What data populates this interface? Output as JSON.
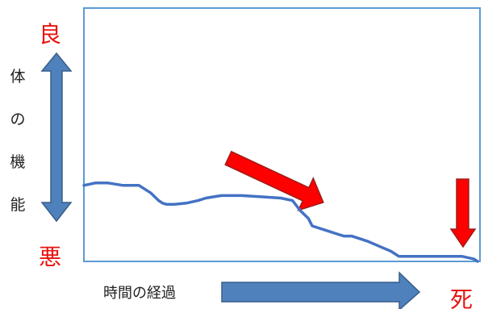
{
  "labels": {
    "good": "良",
    "bad": "悪",
    "death": "死",
    "yaxis_chars": [
      "体",
      "の",
      "機",
      "能"
    ],
    "xlabel": "時間の経過"
  },
  "colors": {
    "axis": "#5b9bd5",
    "curve": "#4472c4",
    "arrow_blue_fill": "#4f81bd",
    "arrow_blue_stroke": "#385d8a",
    "arrow_red_fill": "#ff0000",
    "arrow_red_stroke": "#9c1f1a",
    "label_red": "#e8140f"
  },
  "chart_data": {
    "type": "line",
    "xlabel": "時間の経過",
    "ylabel": "体の機能",
    "y_high_label": "良",
    "y_low_label": "悪",
    "end_label": "死",
    "xlim": [
      0,
      100
    ],
    "ylim": [
      0,
      100
    ],
    "grid": false,
    "series": [
      {
        "x": [
          0,
          3,
          6,
          10,
          14,
          17,
          19,
          20,
          21,
          23,
          26,
          29,
          31,
          33,
          35,
          37,
          40,
          45,
          50,
          53,
          55,
          57,
          58,
          60,
          62,
          64,
          66,
          68,
          70,
          72,
          75,
          78,
          80,
          82,
          84,
          86,
          88,
          91,
          93,
          96,
          99,
          100
        ],
        "y": [
          30,
          31,
          31,
          30,
          30,
          27,
          24,
          23,
          22.5,
          22.5,
          23,
          24,
          25,
          25.5,
          26,
          26,
          26,
          25.5,
          25,
          24,
          20,
          17,
          14,
          13,
          12,
          11,
          10,
          10,
          9,
          8,
          6,
          4,
          2,
          2,
          2,
          2,
          2,
          2,
          2,
          2,
          1,
          0
        ]
      }
    ]
  }
}
